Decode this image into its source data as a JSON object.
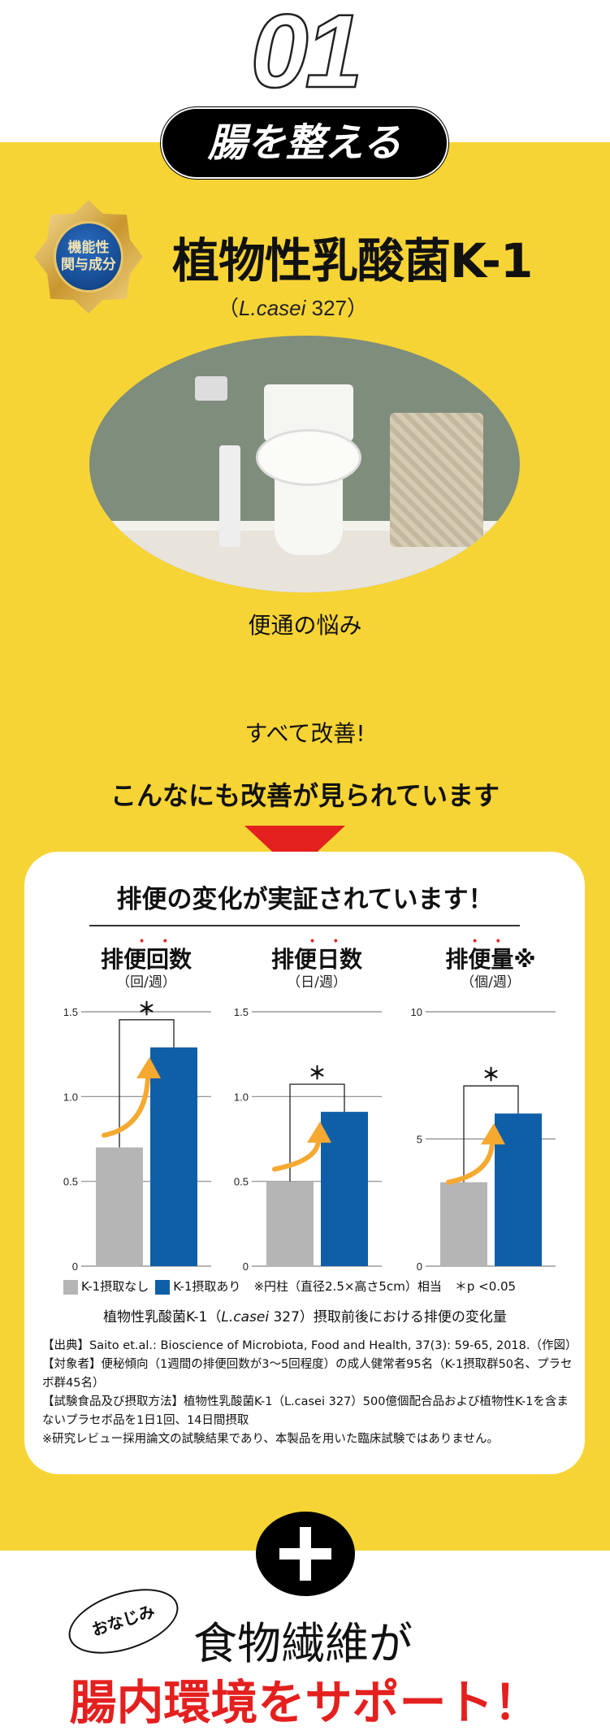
{
  "header": {
    "number": "01",
    "pill": "腸を整える"
  },
  "badge": {
    "text_line1": "機能性",
    "text_line2": "関与成分"
  },
  "product": {
    "title": "植物性乳酸菌K-1",
    "subtitle_open": "（",
    "subtitle_species": "L.casei",
    "subtitle_strain": " 327",
    "subtitle_close": "）"
  },
  "photo_caption": "便通の悩み",
  "improve_text": "すべて改善!",
  "improve_text2": "こんなにも改善が見られています",
  "card": {
    "title": "排便の変化が実証されています！",
    "legend": {
      "none": "K-1摂取なし",
      "with": "K-1摂取あり",
      "note": "※円柱（直径2.5×高さ5cm）相当",
      "sig": "＊p <0.05"
    },
    "caption_pre": "植物性乳酸菌K-1（",
    "caption_species": "L.casei",
    "caption_post": " 327）摂取前後における排便の変化量",
    "notes": [
      "【出典】Saito et.al.: Bioscience of Microbiota, Food and Health, 37(3): 59-65, 2018.（作図）",
      "【対象者】便秘傾向（1週間の排便回数が3〜5回程度）の成人健常者95名（K-1摂取群50名、プラセボ群45名）",
      "【試験食品及び摂取方法】植物性乳酸菌K-1（L.casei 327）500億個配合品および植物性K-1を含まないプラセボ品を1日1回、14日間摂取",
      "※研究レビュー採用論文の試験結果であり、本製品を用いた臨床試験ではありません。"
    ]
  },
  "chart_data": [
    {
      "type": "bar",
      "title": "排便回数",
      "unit": "（回/週）",
      "categories": [
        "K-1摂取なし",
        "K-1摂取あり"
      ],
      "values": [
        0.7,
        1.29
      ],
      "ylim": [
        0,
        1.5
      ],
      "yticks": [
        "0",
        "0.5",
        "1.0",
        "1.5"
      ],
      "significance": "＊",
      "grid": true
    },
    {
      "type": "bar",
      "title": "排便日数",
      "unit": "（日/週）",
      "categories": [
        "K-1摂取なし",
        "K-1摂取あり"
      ],
      "values": [
        0.5,
        0.91
      ],
      "ylim": [
        0,
        1.5
      ],
      "yticks": [
        "0",
        "0.5",
        "1.0",
        "1.5"
      ],
      "significance": "＊",
      "grid": true
    },
    {
      "type": "bar",
      "title": "排便量",
      "title_mark": "※",
      "unit": "（個/週）",
      "categories": [
        "K-1摂取なし",
        "K-1摂取あり"
      ],
      "values": [
        3.3,
        6.0
      ],
      "ylim": [
        0,
        10
      ],
      "yticks": [
        "0",
        "5",
        "10"
      ],
      "significance": "＊",
      "grid": true
    }
  ],
  "colors": {
    "yellow": "#f7d435",
    "none": "#b5b5b5",
    "with": "#0e5fa8",
    "arrow": "#f5a930",
    "red": "#e4201f"
  },
  "footer": {
    "bubble": "おなじみ",
    "fiber": "食物繊維が",
    "support": "腸内環境をサポート！",
    "plus_icon": "plus-icon"
  }
}
